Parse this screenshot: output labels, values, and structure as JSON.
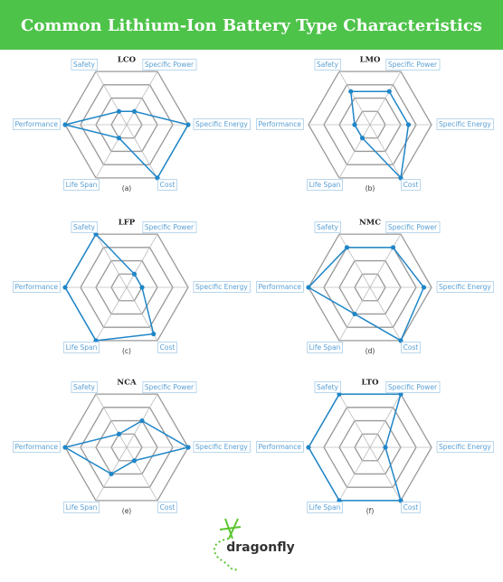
{
  "title": "Common Lithium-Ion Battery Type Characteristics",
  "logo": "dragonfly",
  "chart_data": [
    {
      "type": "radar",
      "title": "LCO",
      "caption": "(a)",
      "categories": [
        "Safety",
        "Specific Power",
        "Specific Energy",
        "Cost",
        "Life Span",
        "Performance"
      ],
      "values": [
        1,
        1,
        4,
        4,
        1,
        4
      ],
      "color": "#1f86c8",
      "rlim": [
        0,
        4
      ],
      "rticks": [
        1,
        2,
        3,
        4
      ]
    },
    {
      "type": "radar",
      "title": "LMO",
      "caption": "(b)",
      "categories": [
        "Safety",
        "Specific Power",
        "Specific Energy",
        "Cost",
        "Life Span",
        "Performance"
      ],
      "values": [
        2.5,
        2.5,
        2.5,
        4,
        1,
        1
      ],
      "color": "#1f86c8",
      "rlim": [
        0,
        4
      ],
      "rticks": [
        1,
        2,
        3,
        4
      ]
    },
    {
      "type": "radar",
      "title": "LFP",
      "caption": "(c)",
      "categories": [
        "Safety",
        "Specific Power",
        "Specific Energy",
        "Cost",
        "Life Span",
        "Performance"
      ],
      "values": [
        4,
        1,
        1,
        3.5,
        4,
        4
      ],
      "color": "#1f86c8",
      "rlim": [
        0,
        4
      ],
      "rticks": [
        1,
        2,
        3,
        4
      ]
    },
    {
      "type": "radar",
      "title": "NMC",
      "caption": "(d)",
      "categories": [
        "Safety",
        "Specific Power",
        "Specific Energy",
        "Cost",
        "Life Span",
        "Performance"
      ],
      "values": [
        3,
        3,
        3.5,
        4,
        2,
        4
      ],
      "color": "#1f86c8",
      "rlim": [
        0,
        4
      ],
      "rticks": [
        1,
        2,
        3,
        4
      ]
    },
    {
      "type": "radar",
      "title": "NCA",
      "caption": "(e)",
      "categories": [
        "Safety",
        "Specific Power",
        "Specific Energy",
        "Cost",
        "Life Span",
        "Performance"
      ],
      "values": [
        1,
        2,
        4,
        1,
        2,
        4
      ],
      "color": "#1f86c8",
      "rlim": [
        0,
        4
      ],
      "rticks": [
        1,
        2,
        3,
        4
      ]
    },
    {
      "type": "radar",
      "title": "LTO",
      "caption": "(f)",
      "categories": [
        "Safety",
        "Specific Power",
        "Specific Energy",
        "Cost",
        "Life Span",
        "Performance"
      ],
      "values": [
        4,
        4,
        1,
        4,
        4,
        4
      ],
      "color": "#1f86c8",
      "rlim": [
        0,
        4
      ],
      "rticks": [
        1,
        2,
        3,
        4
      ]
    }
  ]
}
